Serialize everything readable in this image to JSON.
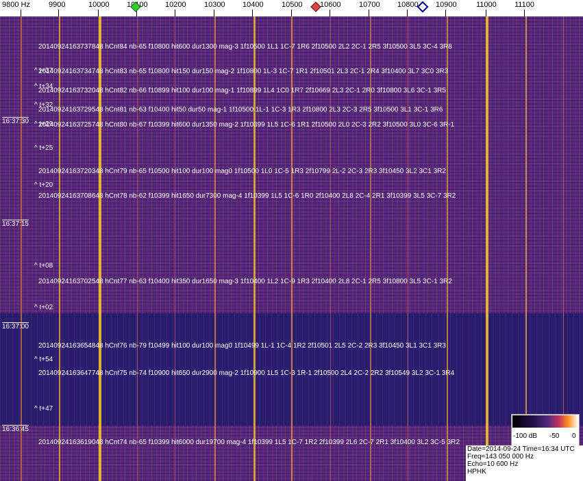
{
  "freq_axis": {
    "labels": [
      "9800 Hz",
      "9900",
      "10000",
      "10100",
      "10200",
      "10300",
      "10400",
      "10500",
      "10600",
      "10700",
      "10800",
      "10900",
      "11000",
      "11100"
    ]
  },
  "time_labels": [
    "16:37:30",
    "16:37:15",
    "16:37:00",
    "16:36:45"
  ],
  "events": [
    "20140924163737848 hCnt84 nb-65 f10800 hit600 dur1300 mag-3 1f10500 1L1 1C-7 1R6 2f10500 2L2 2C-1 2R5 3f10500 3L5 3C-4 3R8",
    "20140924163734748 hCnt83 nb-65 f10800 hit150 dur150 mag-2 1f10800 1L-3 1C-7 1R1 2f10501 2L3 2C-1 2R4 3f10400 3L7 3C0 3R3",
    "20140924163732048 hCnt82 nb-66 f10899 hit100 dur100 mag-1 1f10899 1L4 1C0 1R7 2f10669 2L3 2C-1 2R0 3f10800 3L6 3C-1 3R5",
    "20140924163729548 hCnt81 nb-63 f10400 hit50 dur50 mag-1 1f10500 1L-1 1C-3 1R3 2f10800 2L3 2C-3 2R5 3f10500 3L1 3C-1 3R6",
    "20140924163725748 hCnt80 nb-67 f10399 hit600 dur1350 mag-2 1f10399 1L5 1C-6 1R1 2f10500 2L0 2C-3 2R2 3f10500 3L0 3C-6 3R-1",
    "20140924163720348 hCnt79 nb-65 f10500 hit100 dur100 mag0 1f10500 1L0 1C-5 1R3 2f10799 2L-2 2C-3 2R3 3f10450 3L2 3C1 3R2",
    "20140924163708648 hCnt78 nb-62 f10399 hit1650 dur7300 mag-4 1f10399 1L5 1C-6 1R0 2f10400 2L8 2C-4 2R1 3f10399 3L5 3C-7 3R2",
    "20140924163702548 hCnt77 nb-63 f10400 hit350 dur1650 mag-3 1f10400 1L2 1C-9 1R3 2f10400 2L8 2C-1 2R5 3f10800 3L5 3C-1 3R2",
    "20140924163654848 hCnt76 nb-79 f10499 hit100 dur100 mag0 1f10499 1L-1 1C-4 1R2 2f10501 2L5 2C-2 2R3 3f10450 3L1 3C1 3R3",
    "20140924163647748 hCnt75 nb-74 f10900 hit650 dur2900 mag-2 1f10900 1L5 1C-3 1R-1 2f10500 2L4 2C-2 2R2 3f10549 3L2 3C-1 3R4",
    "20140924163619048 hCnt74 nb-65 f10399 hit6000 dur19700 mag-4 1f10399 1L5 1C-7 1R2 2f10399 2L6 2C-7 2R1 3f10400 3L2 3C-5 3R2"
  ],
  "markers": [
    "^ t+37",
    "^ t+34",
    "^ t+32",
    "^ t+29",
    "^ t+25",
    "^ t+20",
    "^ t+08",
    "^ t+02",
    "^ t+54",
    "^ t+47"
  ],
  "colorbar": {
    "labels": [
      "-100 dB",
      "-50",
      "0"
    ]
  },
  "info": [
    "Date=2014-09-24 Time=16:34 UTC",
    "Freq=143 050 000 Hz",
    "Echo=10 600 Hz",
    "HPHK"
  ]
}
